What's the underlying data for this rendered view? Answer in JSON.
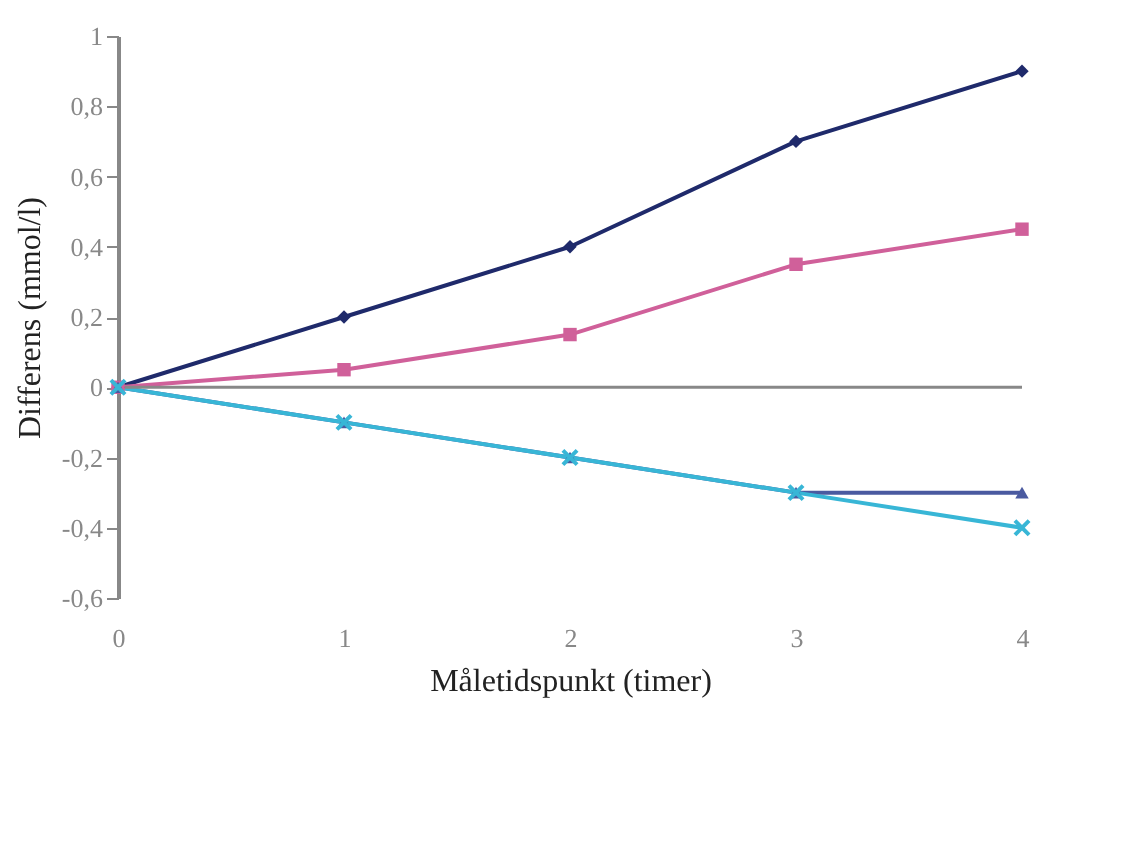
{
  "chart_data": {
    "type": "line",
    "xlabel": "Måletidspunkt (timer)",
    "ylabel": "Differens (mmol/l)",
    "x": [
      0,
      1,
      2,
      3,
      4
    ],
    "series": [
      {
        "color": "#1f2a6b",
        "marker": "diamond",
        "values": [
          0,
          0.2,
          0.4,
          0.7,
          0.9
        ]
      },
      {
        "color": "#d0609a",
        "marker": "square",
        "values": [
          0,
          0.05,
          0.15,
          0.35,
          0.45
        ]
      },
      {
        "color": "#4a5aa0",
        "marker": "triangle",
        "values": [
          0,
          -0.1,
          -0.2,
          -0.3,
          -0.3
        ]
      },
      {
        "color": "#38b6d6",
        "marker": "cross",
        "values": [
          0,
          -0.1,
          -0.2,
          -0.3,
          -0.4
        ]
      }
    ],
    "xlim": [
      0,
      4
    ],
    "xticks": [
      0,
      1,
      2,
      3,
      4
    ],
    "ylim": [
      -0.6,
      1
    ],
    "yticks": [
      {
        "value": -0.6,
        "label": "-0,6"
      },
      {
        "value": -0.4,
        "label": "-0,4"
      },
      {
        "value": -0.2,
        "label": "-0,2"
      },
      0,
      {
        "value": 0.2,
        "label": "0,2"
      },
      {
        "value": 0.4,
        "label": "0,4"
      },
      {
        "value": 0.6,
        "label": "0,6"
      },
      {
        "value": 0.8,
        "label": "0,8"
      },
      1
    ],
    "ref_lines": [
      {
        "axis": "y",
        "value": 0,
        "color": "#888888"
      }
    ],
    "grid": false,
    "legend": false
  }
}
